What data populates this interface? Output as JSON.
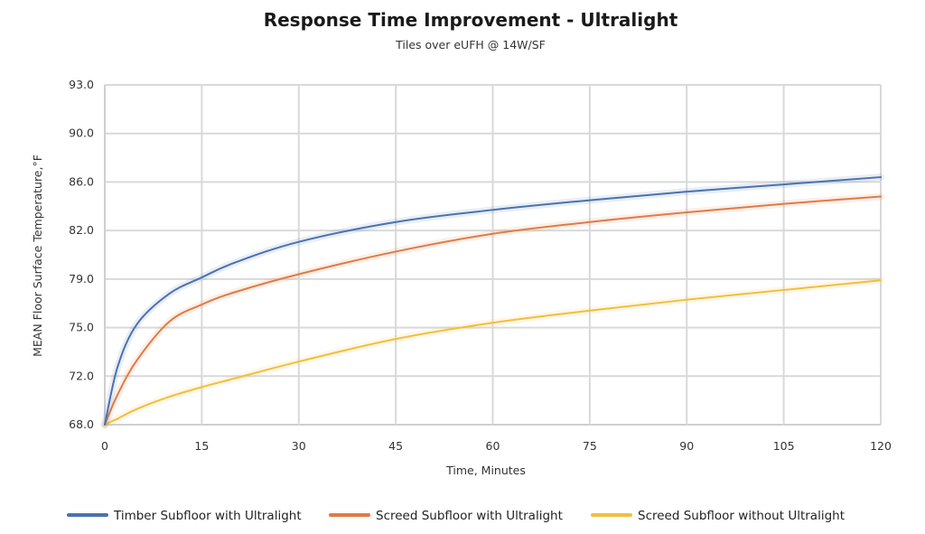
{
  "chart_data": {
    "type": "line",
    "title": "Response Time Improvement - Ultralight",
    "subtitle": "Tiles over eUFH @ 14W/SF",
    "xlabel": "Time, Minutes",
    "ylabel": "MEAN Floor Surface Temperature,°F",
    "xlim": [
      0,
      120
    ],
    "ylim": [
      68,
      93
    ],
    "x_ticks": [
      0,
      15,
      30,
      45,
      60,
      75,
      90,
      105,
      120
    ],
    "y_ticks": [
      68.0,
      72.0,
      75.0,
      79.0,
      82.0,
      86.0,
      90.0,
      93.0
    ],
    "x_tick_labels": [
      "0",
      "15",
      "30",
      "45",
      "60",
      "75",
      "90",
      "105",
      "120"
    ],
    "y_tick_labels": [
      "68.0",
      "72.0",
      "75.0",
      "79.0",
      "82.0",
      "86.0",
      "90.0",
      "93.0"
    ],
    "grid": true,
    "legend_position": "bottom",
    "x": [
      0,
      2,
      5,
      10,
      15,
      20,
      30,
      45,
      60,
      75,
      90,
      105,
      120
    ],
    "series": [
      {
        "name": "Timber Subfloor with Ultralight",
        "color": "#4a72b0",
        "values": [
          68.0,
          72.6,
          75.3,
          77.8,
          79.1,
          80.0,
          81.3,
          82.7,
          83.7,
          84.5,
          85.2,
          85.8,
          86.4
        ]
      },
      {
        "name": "Screed Subfloor with Ultralight",
        "color": "#e07b45",
        "values": [
          68.0,
          70.5,
          73.0,
          75.5,
          76.9,
          77.9,
          79.3,
          80.7,
          81.8,
          82.7,
          83.5,
          84.2,
          84.8
        ]
      },
      {
        "name": "Screed Subfloor without Ultralight",
        "color": "#f2be3c",
        "values": [
          68.0,
          68.5,
          69.3,
          70.3,
          71.1,
          71.8,
          72.9,
          74.3,
          75.4,
          76.4,
          77.3,
          78.1,
          78.9
        ]
      }
    ]
  }
}
